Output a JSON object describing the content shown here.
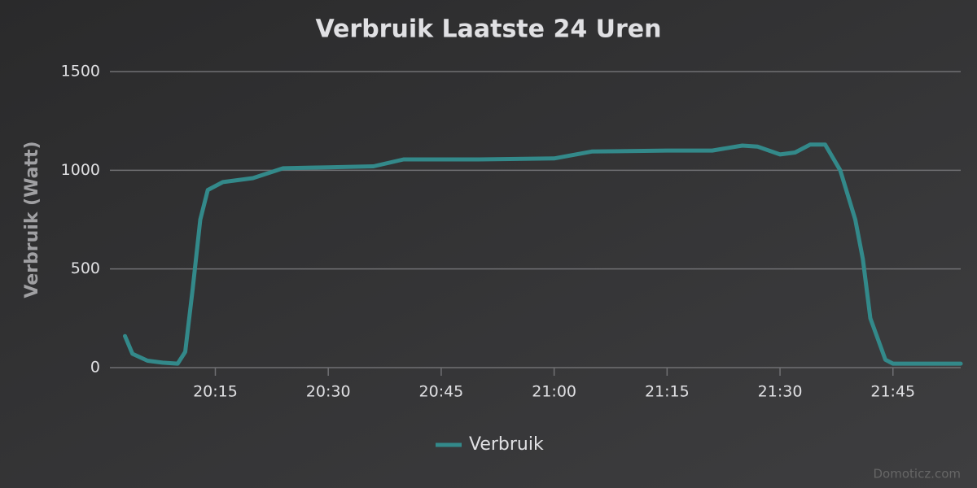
{
  "chart_data": {
    "type": "line",
    "title": "Verbruik Laatste 24 Uren",
    "y_label": "Verbruik (Watt)",
    "x": [
      "20:03",
      "20:04",
      "20:06",
      "20:08",
      "20:10",
      "20:11",
      "20:12",
      "20:13",
      "20:14",
      "20:16",
      "20:20",
      "20:24",
      "20:30",
      "20:36",
      "20:40",
      "20:50",
      "21:00",
      "21:05",
      "21:15",
      "21:21",
      "21:25",
      "21:27",
      "21:30",
      "21:32",
      "21:34",
      "21:36",
      "21:38",
      "21:40",
      "21:41",
      "21:42",
      "21:44",
      "21:45",
      "21:50",
      "21:54"
    ],
    "series": [
      {
        "name": "Verbruik",
        "color": "#33898a",
        "values": [
          160,
          70,
          35,
          25,
          20,
          80,
          400,
          750,
          900,
          940,
          960,
          1010,
          1015,
          1020,
          1055,
          1055,
          1060,
          1095,
          1100,
          1100,
          1125,
          1120,
          1080,
          1090,
          1130,
          1130,
          1000,
          750,
          550,
          250,
          40,
          20,
          20,
          20
        ]
      }
    ],
    "xlim": [
      "20:01",
      "21:54"
    ],
    "xticks": [
      "20:15",
      "20:30",
      "20:45",
      "21:00",
      "21:15",
      "21:30",
      "21:45"
    ],
    "ylim": [
      0,
      1500
    ],
    "yticks": [
      0,
      500,
      1000,
      1500
    ],
    "grid": true,
    "legend": "bottom",
    "credit": "Domoticz.com"
  }
}
